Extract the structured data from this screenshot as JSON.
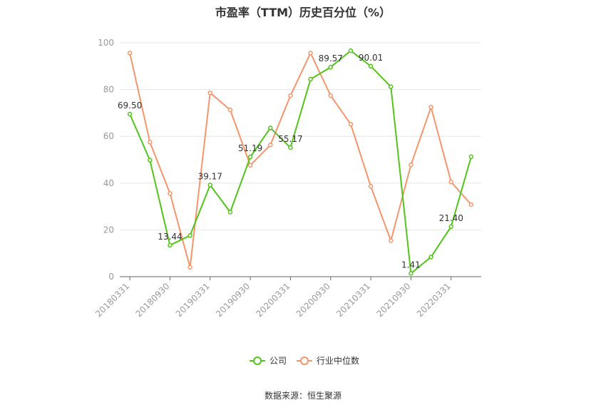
{
  "title": "市盈率（TTM）历史百分位（%）",
  "source": "数据来源：恒生聚源",
  "colors": {
    "company": "#52c41a",
    "industry": "#f5956c",
    "axis": "#666666",
    "grid": "#e6e6e6",
    "tick_text": "#999999"
  },
  "chart_data": {
    "type": "line",
    "title": "市盈率（TTM）历史百分位（%）",
    "xlabel": "",
    "ylabel": "",
    "ylim": [
      0,
      100
    ],
    "yticks": [
      0,
      20,
      40,
      60,
      80,
      100
    ],
    "grid": true,
    "legend_position": "bottom",
    "x": [
      "20180331",
      "20180630",
      "20180930",
      "20181231",
      "20190331",
      "20190630",
      "20190930",
      "20191231",
      "20200331",
      "20200630",
      "20200930",
      "20201231",
      "20210331",
      "20210630",
      "20210930",
      "20211231",
      "20220331",
      "20220630"
    ],
    "x_tick_labels": [
      "20180331",
      "20180930",
      "20190331",
      "20190930",
      "20200331",
      "20200930",
      "20210331",
      "20210930",
      "20220331"
    ],
    "series": [
      {
        "name": "公司",
        "values": [
          69.5,
          49.8,
          13.44,
          17.6,
          39.17,
          27.6,
          51.19,
          63.6,
          55.17,
          84.4,
          89.57,
          96.6,
          90.01,
          81.2,
          1.41,
          8.4,
          21.4,
          51.3
        ],
        "labels": [
          "69.50",
          "",
          "13.44",
          "",
          "39.17",
          "",
          "51.19",
          "",
          "55.17",
          "",
          "89.57",
          "",
          "90.01",
          "",
          "1.41",
          "",
          "21.40",
          ""
        ]
      },
      {
        "name": "行业中位数",
        "values": [
          95.6,
          57.5,
          35.6,
          4.0,
          78.6,
          71.3,
          47.6,
          56.3,
          77.4,
          95.6,
          77.4,
          65.2,
          38.6,
          15.4,
          47.8,
          72.5,
          40.5,
          30.8
        ]
      }
    ]
  }
}
